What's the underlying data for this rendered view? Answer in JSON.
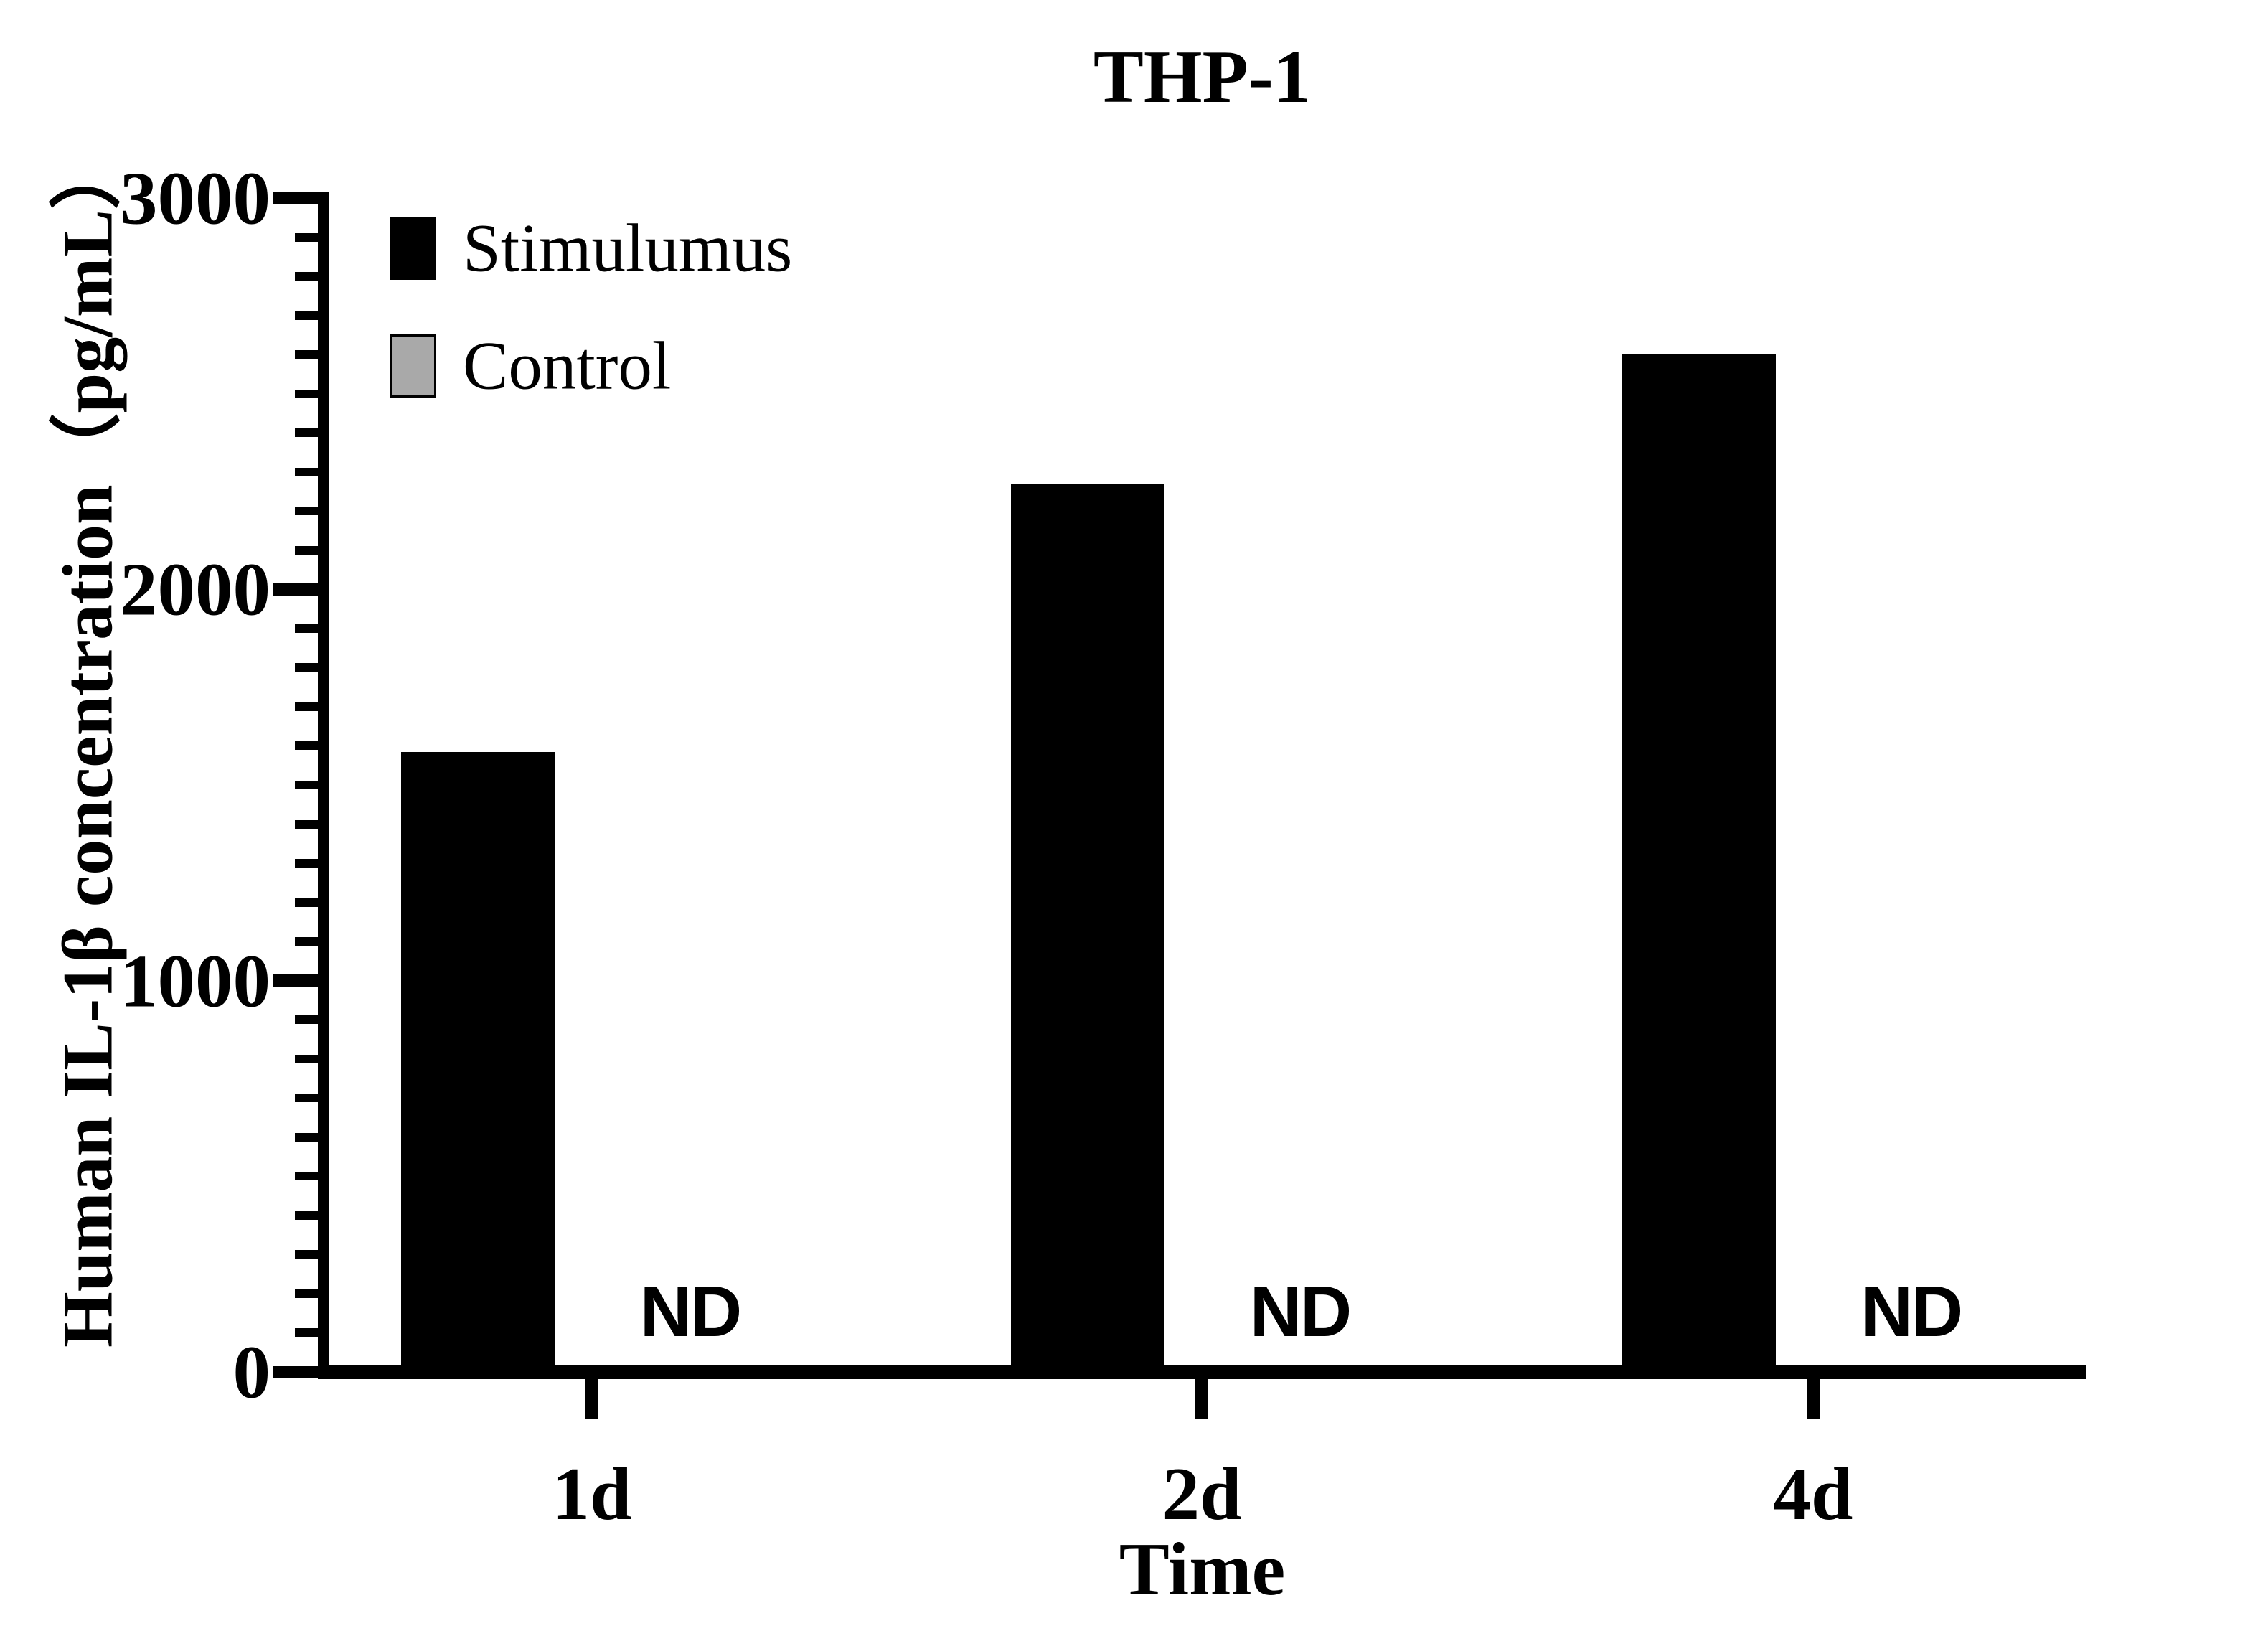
{
  "figure": {
    "title": "THP-1",
    "background_color": "#ffffff",
    "foreground_color": "#000000"
  },
  "legend": {
    "items": [
      {
        "label": "Stimulumus",
        "swatch_color": "#000000",
        "swatch_border": "#000000"
      },
      {
        "label": "Control",
        "swatch_color": "#a9a9a9",
        "swatch_border": "#000000"
      }
    ]
  },
  "axes": {
    "x_title": "Time",
    "y_title": "Human IL-1β concentration（pg/mL）"
  },
  "chart_data": {
    "type": "bar",
    "title": "THP-1",
    "categories": [
      "1d",
      "2d",
      "4d"
    ],
    "series": [
      {
        "name": "Stimulumus",
        "color": "#000000",
        "values": [
          1585,
          2270,
          2600
        ]
      },
      {
        "name": "Control",
        "color": "#a9a9a9",
        "values": [
          null,
          null,
          null
        ],
        "not_detected_text": "ND"
      }
    ],
    "nd_annotations": [
      "ND",
      "ND",
      "ND"
    ],
    "xlabel": "Time",
    "ylabel": "Human IL-1β concentration（pg/mL）",
    "ylim": [
      0,
      3000
    ],
    "yticks_major": [
      0,
      1000,
      2000,
      3000
    ],
    "ytick_labels": [
      "0",
      "1000",
      "2000",
      "3000"
    ],
    "ytick_minor_step": 100,
    "grid": false,
    "legend_position": "top-left-inside"
  }
}
